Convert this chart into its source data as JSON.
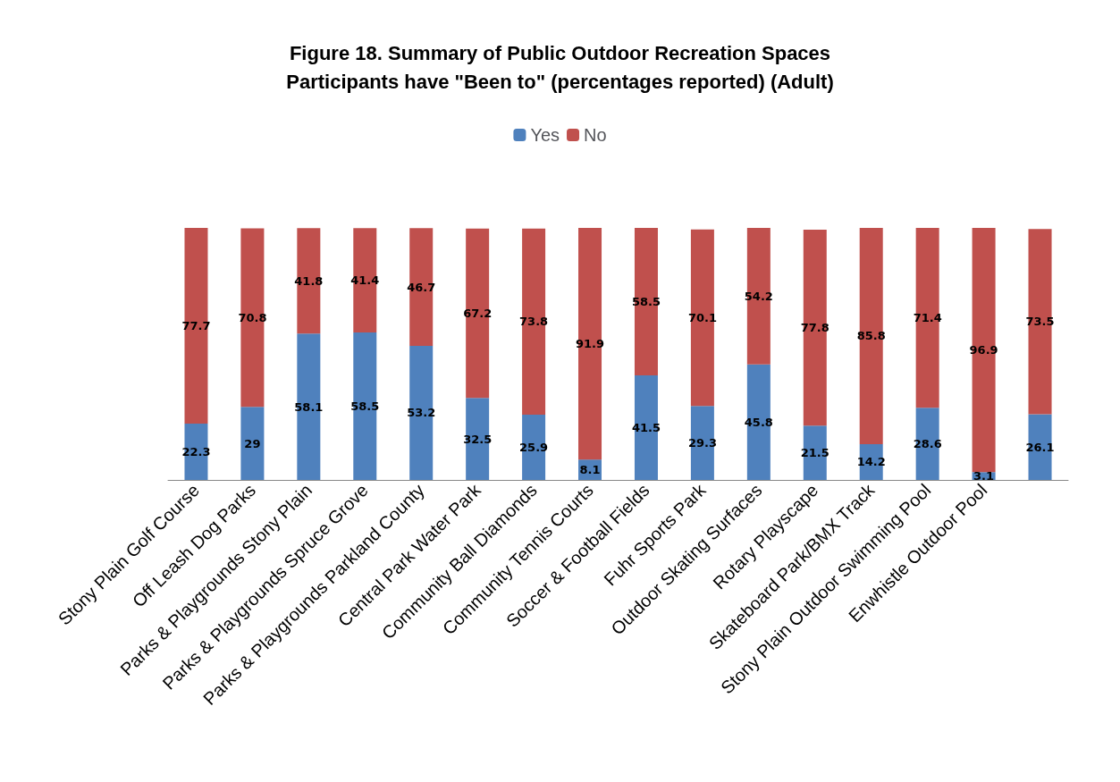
{
  "chart_data": {
    "type": "bar",
    "stacked": true,
    "data_labels": true,
    "legend": "top",
    "title": "Figure 18. Summary of Public Outdoor Recreation Spaces\nParticipants have \"Been to\" (percentages reported) (Adult)",
    "categories": [
      "Stony Plain Golf Course",
      "Off Leash Dog Parks",
      "Parks & Playgrounds Stony Plain",
      "Parks & Playgrounds Spruce Grove",
      "Parks & Playgrounds Parkland County",
      "Central Park Water Park",
      "Community Ball Diamonds",
      "Community Tennis Courts",
      "Soccer & Football Fields",
      "Fuhr Sports Park",
      "Outdoor Skating Surfaces",
      "Rotary Playscape",
      "Skateboard Park/BMX Track",
      "Stony Plain Outdoor Swimming Pool",
      "Enwhistle Outdoor Pool",
      null
    ],
    "series": [
      {
        "name": "Yes",
        "color": "#4f81bd",
        "values": [
          22.3,
          29,
          58.1,
          58.5,
          53.2,
          32.5,
          25.9,
          8.1,
          41.5,
          29.3,
          45.8,
          21.5,
          14.2,
          28.6,
          3.1,
          26.1
        ]
      },
      {
        "name": "No",
        "color": "#c0504d",
        "values": [
          77.7,
          70.8,
          41.8,
          41.4,
          46.7,
          67.2,
          73.8,
          91.9,
          58.5,
          70.1,
          54.2,
          77.8,
          85.8,
          71.4,
          96.9,
          73.5
        ]
      }
    ]
  }
}
